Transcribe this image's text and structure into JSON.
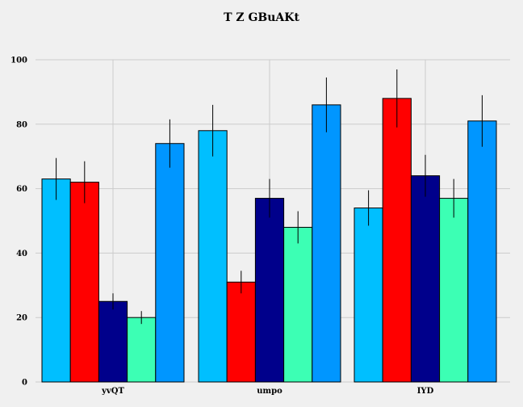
{
  "chart_data": {
    "type": "bar",
    "title": "T Z GBuAKt",
    "xlabel": "",
    "ylabel": "",
    "categories": [
      "yvQT",
      "umpo",
      "IYD"
    ],
    "ylim": [
      0,
      100
    ],
    "yticks": [
      0,
      20,
      40,
      60,
      80,
      100
    ],
    "grid": true,
    "legend": "none",
    "series": [
      {
        "color": "#00bfff",
        "values": [
          63,
          78,
          54
        ],
        "errors": [
          6.5,
          8,
          5.5
        ]
      },
      {
        "color": "#ff0000",
        "values": [
          62,
          31,
          88
        ],
        "errors": [
          6.5,
          3.5,
          9
        ]
      },
      {
        "color": "#00008b",
        "values": [
          25,
          57,
          64
        ],
        "errors": [
          2.5,
          6,
          6.5
        ]
      },
      {
        "color": "#3cffb4",
        "values": [
          20,
          48,
          57
        ],
        "errors": [
          2,
          5,
          6
        ]
      },
      {
        "color": "#0096ff",
        "values": [
          74,
          86,
          81
        ],
        "errors": [
          7.5,
          8.5,
          8
        ]
      }
    ]
  }
}
